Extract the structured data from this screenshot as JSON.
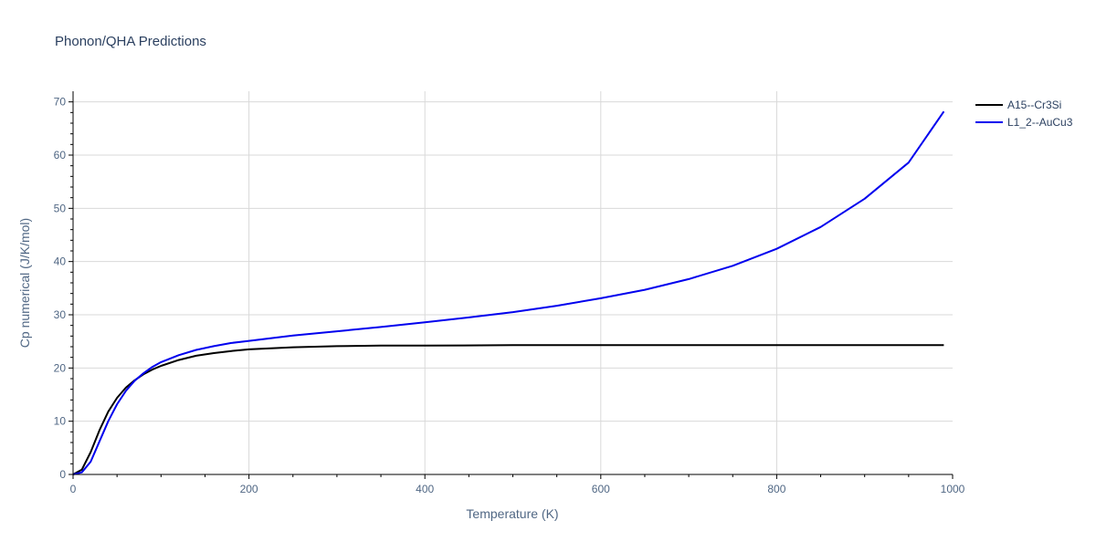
{
  "chart_data": {
    "type": "line",
    "title": "Phonon/QHA Predictions",
    "xlabel": "Temperature (K)",
    "ylabel": "Cp numerical (J/K/mol)",
    "xlim": [
      0,
      1000
    ],
    "ylim": [
      0,
      72
    ],
    "xticks": [
      "0",
      "200",
      "400",
      "600",
      "800",
      "1000"
    ],
    "yticks": [
      "0",
      "10",
      "20",
      "30",
      "40",
      "50",
      "60",
      "70"
    ],
    "grid": true,
    "legend_position": "top-right",
    "series": [
      {
        "name": "A15--Cr3Si",
        "color": "#000000",
        "x": [
          0,
          10,
          20,
          30,
          40,
          50,
          60,
          70,
          80,
          90,
          100,
          120,
          140,
          160,
          180,
          200,
          250,
          300,
          350,
          400,
          500,
          600,
          700,
          800,
          900,
          990
        ],
        "y": [
          0,
          0.9,
          4.2,
          8.3,
          11.8,
          14.4,
          16.3,
          17.7,
          18.8,
          19.7,
          20.4,
          21.5,
          22.3,
          22.8,
          23.2,
          23.5,
          23.9,
          24.1,
          24.2,
          24.2,
          24.3,
          24.3,
          24.3,
          24.3,
          24.3,
          24.3
        ]
      },
      {
        "name": "L1_2--AuCu3",
        "color": "#0000ee",
        "x": [
          0,
          10,
          20,
          30,
          40,
          50,
          60,
          70,
          80,
          90,
          100,
          120,
          140,
          160,
          180,
          200,
          250,
          300,
          350,
          400,
          450,
          500,
          550,
          600,
          650,
          700,
          750,
          800,
          850,
          900,
          950,
          990
        ],
        "y": [
          0,
          0.4,
          2.4,
          6.2,
          10.0,
          13.2,
          15.7,
          17.6,
          19.0,
          20.2,
          21.1,
          22.4,
          23.4,
          24.1,
          24.7,
          25.1,
          26.1,
          26.9,
          27.7,
          28.6,
          29.5,
          30.5,
          31.7,
          33.1,
          34.7,
          36.7,
          39.2,
          42.4,
          46.5,
          51.8,
          58.6,
          68.2
        ]
      }
    ]
  }
}
